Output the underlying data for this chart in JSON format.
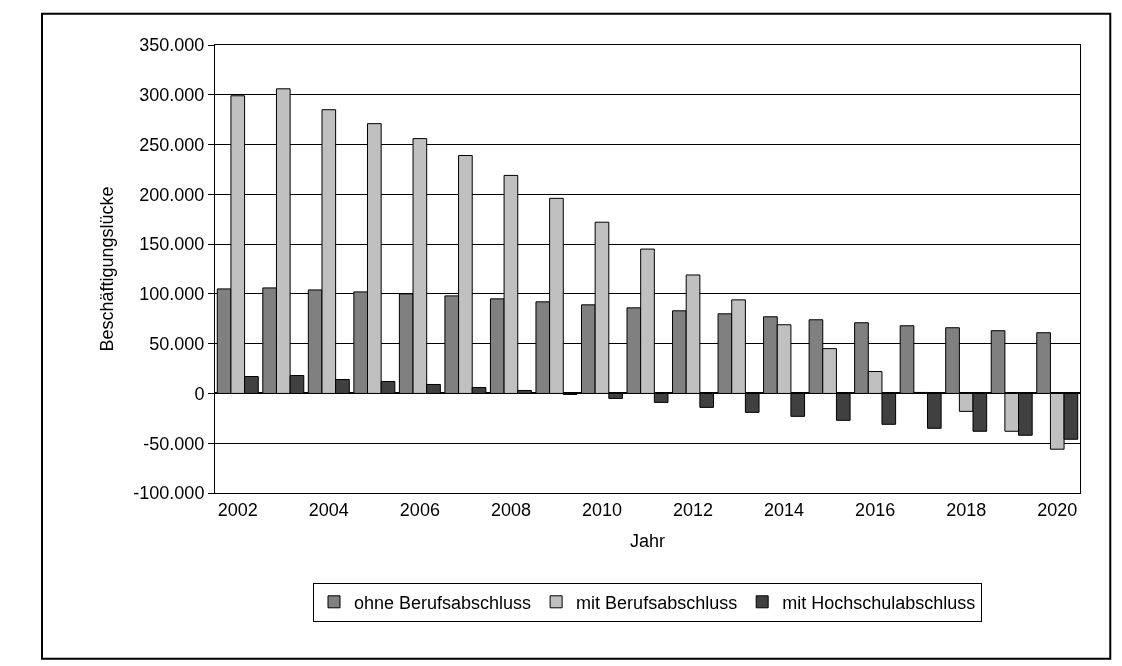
{
  "chart_data": {
    "type": "bar",
    "xlabel": "Jahr",
    "ylabel": "Beschäftigungslücke",
    "categories": [
      "2002",
      null,
      "2004",
      null,
      "2006",
      null,
      "2008",
      null,
      "2010",
      null,
      "2012",
      null,
      "2014",
      null,
      "2016",
      null,
      "2018",
      null,
      "2020"
    ],
    "series": [
      {
        "name": "ohne Berufsabschluss",
        "color": "#808080",
        "values": [
          105000,
          106000,
          104000,
          102000,
          100000,
          98000,
          95000,
          92000,
          89000,
          86000,
          83000,
          80000,
          77000,
          74000,
          71000,
          68000,
          66000,
          63000,
          61000
        ]
      },
      {
        "name": "mit Berufsabschluss",
        "color": "#c0c0c0",
        "values": [
          299000,
          306000,
          285000,
          271000,
          256000,
          239000,
          219000,
          196000,
          172000,
          145000,
          119000,
          94000,
          69000,
          45000,
          22000,
          1000,
          -18000,
          -38000,
          -56000
        ]
      },
      {
        "name": "mit Hochschulabschluss",
        "color": "#404040",
        "values": [
          17000,
          18000,
          14000,
          12000,
          9000,
          6000,
          3000,
          -1000,
          -5000,
          -9000,
          -14000,
          -19000,
          -23000,
          -27000,
          -31000,
          -35000,
          -38000,
          -42000,
          -46000
        ]
      }
    ],
    "ylim": [
      -100000,
      350000
    ],
    "yticks": [
      {
        "value": -100000,
        "label": "-100.000"
      },
      {
        "value": -50000,
        "label": "-50.000"
      },
      {
        "value": 0,
        "label": "0"
      },
      {
        "value": 50000,
        "label": "50.000"
      },
      {
        "value": 100000,
        "label": "100.000"
      },
      {
        "value": 150000,
        "label": "150.000"
      },
      {
        "value": 200000,
        "label": "200.000"
      },
      {
        "value": 250000,
        "label": "250.000"
      },
      {
        "value": 300000,
        "label": "300.000"
      },
      {
        "value": 350000,
        "label": "350.000"
      }
    ],
    "grid": "y",
    "legend": "bottom"
  }
}
